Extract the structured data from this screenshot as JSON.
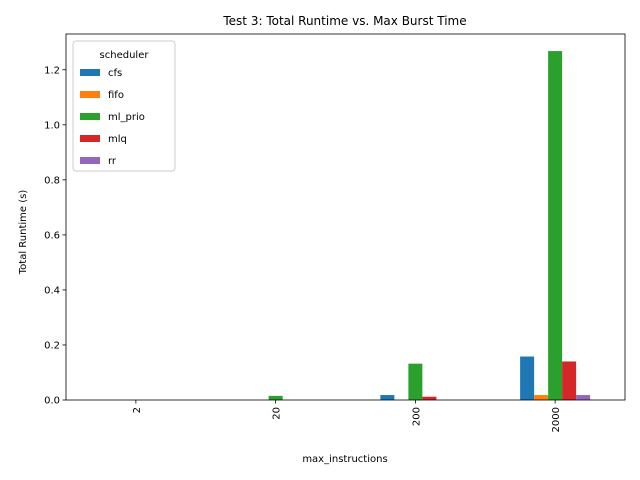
{
  "chart_data": {
    "type": "bar",
    "title": "Test 3: Total Runtime vs. Max Burst Time",
    "xlabel": "max_instructions",
    "ylabel": "Total Runtime (s)",
    "categories": [
      "2",
      "20",
      "200",
      "2000"
    ],
    "ylim": [
      0,
      1.33
    ],
    "yticks": [
      "0.0",
      "0.2",
      "0.4",
      "0.6",
      "0.8",
      "1.0",
      "1.2"
    ],
    "grid": false,
    "legend": {
      "title": "scheduler",
      "placement": "top-left"
    },
    "series": [
      {
        "name": "cfs",
        "color": "#1f77b4",
        "values": [
          0.0,
          0.0,
          0.018,
          0.158
        ]
      },
      {
        "name": "fifo",
        "color": "#ff7f0e",
        "values": [
          0.0,
          0.0,
          0.0,
          0.018
        ]
      },
      {
        "name": "ml_prio",
        "color": "#2ca02c",
        "values": [
          0.0,
          0.015,
          0.132,
          1.268
        ]
      },
      {
        "name": "mlq",
        "color": "#d62728",
        "values": [
          0.0,
          0.0,
          0.012,
          0.14
        ]
      },
      {
        "name": "rr",
        "color": "#9467bd",
        "values": [
          0.0,
          0.0,
          0.0,
          0.018
        ]
      }
    ]
  }
}
